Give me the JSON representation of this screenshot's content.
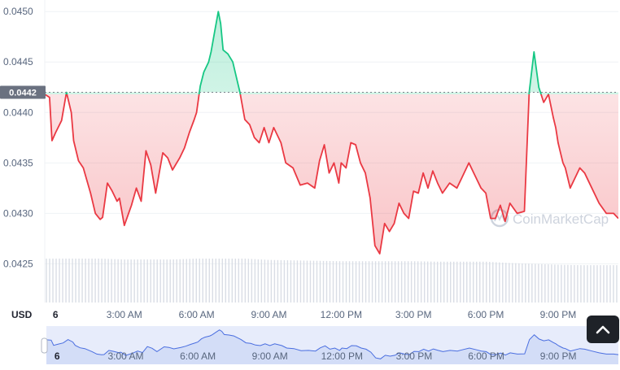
{
  "chart_data": {
    "type": "line",
    "title": "",
    "currency_label": "USD",
    "watermark": "CoinMarketCap",
    "reference_price": 0.0442,
    "reference_label": "0.0442",
    "ylim": [
      0.04235,
      0.04505
    ],
    "y_ticks": [
      0.0425,
      0.043,
      0.0435,
      0.044,
      0.0445,
      0.045
    ],
    "y_tick_labels": [
      "0.0425",
      "0.0430",
      "0.0435",
      "0.0440",
      "0.0445",
      "0.0450"
    ],
    "x_ticks": [
      0,
      3,
      6,
      9,
      12,
      15,
      18,
      21
    ],
    "x_tick_labels": [
      "6",
      "3:00 AM",
      "6:00 AM",
      "9:00 AM",
      "12:00 PM",
      "3:00 PM",
      "6:00 PM",
      "9:00 PM"
    ],
    "xlim": [
      -0.3,
      23.5
    ],
    "grid": true,
    "colors": {
      "up": "#16c784",
      "down": "#ea3943",
      "navigator_line": "#4a6ee0"
    },
    "series": [
      {
        "x": [
          -0.3,
          -0.1,
          0.0,
          0.15,
          0.4,
          0.6,
          0.8,
          0.9,
          1.1,
          1.3,
          1.6,
          1.8,
          2.0,
          2.1,
          2.3,
          2.5,
          2.7,
          2.8,
          3.0,
          3.3,
          3.5,
          3.7,
          3.9,
          4.1,
          4.3,
          4.6,
          4.8,
          5.0,
          5.3,
          5.5,
          5.7,
          5.9,
          6.0,
          6.15,
          6.3,
          6.4,
          6.5,
          6.6,
          6.75,
          6.9,
          7.0,
          7.1,
          7.3,
          7.5,
          7.6,
          7.8,
          8.0,
          8.2,
          8.4,
          8.6,
          8.8,
          9.0,
          9.2,
          9.5,
          9.7,
          10.0,
          10.3,
          10.6,
          10.9,
          11.1,
          11.3,
          11.5,
          11.7,
          11.9,
          12.0,
          12.2,
          12.4,
          12.6,
          12.8,
          13.0,
          13.2,
          13.4,
          13.6,
          13.8,
          14.0,
          14.2,
          14.4,
          14.6,
          14.8,
          15.0,
          15.2,
          15.4,
          15.6,
          15.8,
          16.0,
          16.2,
          16.5,
          16.8,
          17.0,
          17.3,
          17.6,
          17.8,
          18.0,
          18.2,
          18.4,
          18.6,
          18.8,
          19.0,
          19.3,
          19.6,
          19.8,
          20.0,
          20.2,
          20.4,
          20.6,
          20.8,
          20.9,
          21.0,
          21.1,
          21.2,
          21.3,
          21.5,
          21.7,
          21.9,
          22.1,
          22.4,
          22.7,
          23.0,
          23.3,
          23.5
        ],
        "y": [
          0.04418,
          0.04415,
          0.04372,
          0.0438,
          0.04392,
          0.0442,
          0.044,
          0.04372,
          0.04352,
          0.04345,
          0.0432,
          0.043,
          0.04294,
          0.04296,
          0.0433,
          0.04322,
          0.04312,
          0.04315,
          0.04288,
          0.04308,
          0.04325,
          0.04312,
          0.04362,
          0.04348,
          0.0432,
          0.0436,
          0.04355,
          0.04343,
          0.04355,
          0.04365,
          0.0438,
          0.04393,
          0.044,
          0.04426,
          0.0444,
          0.04445,
          0.0445,
          0.0446,
          0.0448,
          0.045,
          0.04488,
          0.04462,
          0.04458,
          0.0445,
          0.0444,
          0.0442,
          0.04393,
          0.04388,
          0.04375,
          0.0437,
          0.04385,
          0.0437,
          0.04385,
          0.0437,
          0.0435,
          0.04345,
          0.04328,
          0.0433,
          0.04325,
          0.04352,
          0.04368,
          0.0434,
          0.0435,
          0.0433,
          0.0435,
          0.04345,
          0.0437,
          0.04368,
          0.0435,
          0.0434,
          0.04315,
          0.04268,
          0.0426,
          0.0429,
          0.04282,
          0.0429,
          0.0431,
          0.043,
          0.04295,
          0.04322,
          0.0432,
          0.0434,
          0.04325,
          0.04342,
          0.0433,
          0.0432,
          0.0433,
          0.04325,
          0.04335,
          0.0435,
          0.04335,
          0.04325,
          0.0432,
          0.04295,
          0.04295,
          0.04308,
          0.04292,
          0.0431,
          0.043,
          0.04302,
          0.0442,
          0.0446,
          0.04425,
          0.0441,
          0.04418,
          0.04395,
          0.04385,
          0.0437,
          0.0436,
          0.0435,
          0.04345,
          0.04325,
          0.04335,
          0.04345,
          0.0434,
          0.04325,
          0.0431,
          0.043,
          0.043,
          0.04295
        ]
      },
      {
        "name": "volume",
        "x": [
          -0.3,
          0.0,
          1.0,
          2.0,
          3.0,
          4.0,
          5.0,
          6.0,
          7.0,
          8.0,
          9.0,
          10.0,
          11.0,
          12.0,
          13.0,
          14.0,
          15.0,
          16.0,
          17.0,
          18.0,
          19.0,
          20.0,
          21.0,
          22.0,
          23.0,
          23.5
        ],
        "y": [
          1.0,
          1.0,
          1.0,
          1.0,
          0.98,
          0.98,
          0.98,
          1.0,
          1.0,
          1.0,
          0.97,
          0.96,
          0.95,
          0.94,
          0.94,
          0.94,
          0.94,
          0.93,
          0.93,
          0.93,
          0.9,
          0.88,
          0.86,
          0.85,
          0.85,
          0.85
        ]
      }
    ]
  }
}
